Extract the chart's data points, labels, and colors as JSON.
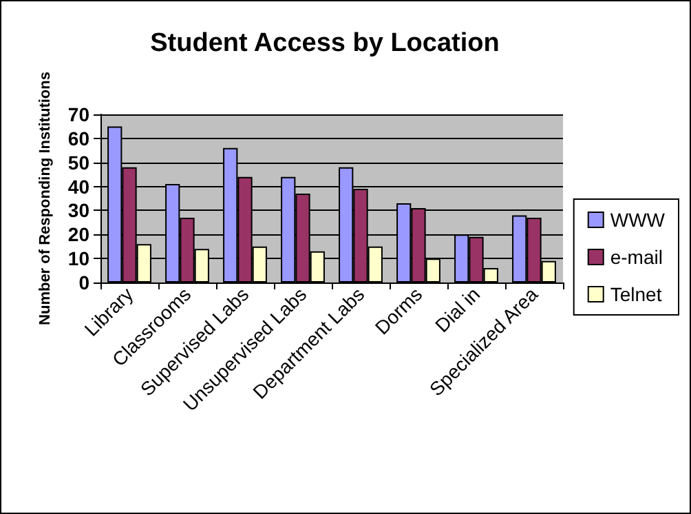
{
  "chart_data": {
    "type": "bar",
    "title": "Student Access by Location",
    "ylabel": "Number of Responding Institutions",
    "categories": [
      "Library",
      "Classrooms",
      "Supervised Labs",
      "Unsupervised Labs",
      "Department Labs",
      "Dorms",
      "Dial in",
      "Specialized Area"
    ],
    "series": [
      {
        "name": "WWW",
        "color": "#9999ff",
        "values": [
          65,
          41,
          56,
          44,
          48,
          33,
          20,
          28
        ]
      },
      {
        "name": "e-mail",
        "color": "#993366",
        "values": [
          48,
          27,
          44,
          37,
          39,
          31,
          19,
          27
        ]
      },
      {
        "name": "Telnet",
        "color": "#ffffcc",
        "values": [
          16,
          14,
          15,
          13,
          15,
          10,
          6,
          9
        ]
      }
    ],
    "ylim": [
      0,
      70
    ],
    "yticks": [
      0,
      10,
      20,
      30,
      40,
      50,
      60,
      70
    ],
    "grid": "y",
    "legend": "right"
  }
}
